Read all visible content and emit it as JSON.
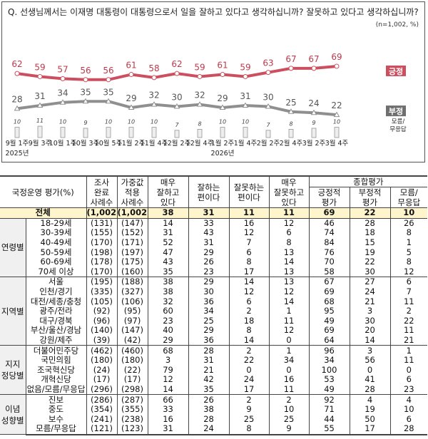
{
  "question": "Q. 선생님께서는 이재명 대통령이 대통령으로서 일을 잘하고 있다고 생각하십니까? 잘못하고 있다고 생각하십니까?",
  "sample_note": "(n=1,002, %)",
  "chart_data": {
    "type": "line",
    "categories": [
      "9월 1주",
      "9월 3주",
      "10월 1주",
      "10월 3주",
      "10월 5주",
      "11월 2주",
      "11월 4주",
      "12월 2주",
      "12월 4주",
      "1월 2주",
      "1월 4주",
      "2월 2주",
      "2월 4주",
      "3월 2주",
      "3월 4주"
    ],
    "year_labels": [
      {
        "index": 0,
        "text": "2025년"
      },
      {
        "index": 9,
        "text": "2026년"
      }
    ],
    "series": [
      {
        "name": "긍정",
        "type": "line",
        "color": "#cc4f5f",
        "values": [
          62,
          59,
          57,
          56,
          56,
          61,
          58,
          62,
          59,
          61,
          59,
          63,
          67,
          67,
          69
        ]
      },
      {
        "name": "부정",
        "type": "line",
        "color": "#8f8f8f",
        "values": [
          28,
          31,
          34,
          35,
          35,
          29,
          32,
          30,
          32,
          29,
          31,
          30,
          25,
          24,
          22
        ]
      },
      {
        "name": "모름/무응답",
        "type": "bar",
        "color": "#eeeeee",
        "values": [
          10,
          11,
          10,
          9,
          10,
          10,
          10,
          7,
          8,
          10,
          10,
          7,
          8,
          9,
          10
        ]
      }
    ]
  },
  "table": {
    "header": {
      "label": "국정운영 평가(%)",
      "cols": [
        "조사\n완료\n사례수",
        "가중값\n적용\n사례수",
        "매우\n잘하고\n있다",
        "잘하는\n편이다",
        "잘못하는\n편이다",
        "매우\n잘못하고\n있다"
      ],
      "group": "종합평가",
      "sub": [
        "긍정적\n평가",
        "부정적\n평가",
        "모름/\n무응답"
      ]
    },
    "total": {
      "label": "전체",
      "values": [
        "(1,002)",
        "(1,002)",
        "38",
        "31",
        "11",
        "11",
        "69",
        "22",
        "10"
      ]
    },
    "groups": [
      {
        "name": "연령별",
        "rows": [
          {
            "label": "18-29세",
            "values": [
              "(131)",
              "(147)",
              "14",
              "33",
              "16",
              "12",
              "46",
              "28",
              "26"
            ]
          },
          {
            "label": "30-39세",
            "values": [
              "(155)",
              "(152)",
              "31",
              "43",
              "12",
              "6",
              "74",
              "18",
              "8"
            ]
          },
          {
            "label": "40-49세",
            "values": [
              "(170)",
              "(171)",
              "52",
              "31",
              "7",
              "8",
              "84",
              "15",
              "1"
            ]
          },
          {
            "label": "50-59세",
            "values": [
              "(198)",
              "(197)",
              "47",
              "29",
              "6",
              "13",
              "76",
              "19",
              "5"
            ]
          },
          {
            "label": "60-69세",
            "values": [
              "(178)",
              "(175)",
              "43",
              "26",
              "8",
              "14",
              "70",
              "22",
              "8"
            ]
          },
          {
            "label": "70세 이상",
            "values": [
              "(170)",
              "(160)",
              "35",
              "23",
              "17",
              "13",
              "58",
              "30",
              "12"
            ]
          }
        ]
      },
      {
        "name": "지역별",
        "rows": [
          {
            "label": "서울",
            "values": [
              "(195)",
              "(188)",
              "38",
              "29",
              "14",
              "13",
              "67",
              "27",
              "6"
            ]
          },
          {
            "label": "인천/경기",
            "values": [
              "(335)",
              "(327)",
              "38",
              "30",
              "12",
              "12",
              "69",
              "24",
              "7"
            ]
          },
          {
            "label": "대전/세종/충청",
            "values": [
              "(105)",
              "(106)",
              "32",
              "36",
              "6",
              "14",
              "68",
              "21",
              "11"
            ]
          },
          {
            "label": "광주/전라",
            "values": [
              "(92)",
              "(95)",
              "60",
              "34",
              "2",
              "1",
              "95",
              "3",
              "2"
            ]
          },
          {
            "label": "대구/경북",
            "values": [
              "(96)",
              "(97)",
              "23",
              "25",
              "18",
              "11",
              "49",
              "30",
              "22"
            ]
          },
          {
            "label": "부산/울산/경남",
            "values": [
              "(140)",
              "(147)",
              "40",
              "29",
              "8",
              "12",
              "69",
              "20",
              "11"
            ]
          },
          {
            "label": "강원/제주",
            "values": [
              "(39)",
              "(42)",
              "29",
              "36",
              "14",
              "0",
              "64",
              "14",
              "21"
            ]
          }
        ]
      },
      {
        "name": "지지\n정당별",
        "rows": [
          {
            "label": "더불어민주당",
            "values": [
              "(462)",
              "(460)",
              "68",
              "28",
              "2",
              "1",
              "96",
              "3",
              "1"
            ]
          },
          {
            "label": "국민의힘",
            "values": [
              "(180)",
              "(180)",
              "3",
              "31",
              "22",
              "34",
              "34",
              "56",
              "11"
            ]
          },
          {
            "label": "조국혁신당",
            "values": [
              "(24)",
              "(22)",
              "79",
              "21",
              "0",
              "0",
              "100",
              "0",
              "0"
            ]
          },
          {
            "label": "개혁신당",
            "values": [
              "(17)",
              "(17)",
              "12",
              "42",
              "24",
              "16",
              "53",
              "41",
              "6"
            ]
          },
          {
            "label": "없음/모름/무응답",
            "values": [
              "(296)",
              "(298)",
              "14",
              "35",
              "17",
              "11",
              "49",
              "28",
              "23"
            ]
          }
        ]
      },
      {
        "name": "이념\n성향별",
        "rows": [
          {
            "label": "진보",
            "values": [
              "(286)",
              "(287)",
              "66",
              "26",
              "2",
              "2",
              "92",
              "4",
              "4"
            ]
          },
          {
            "label": "중도",
            "values": [
              "(354)",
              "(355)",
              "33",
              "38",
              "9",
              "10",
              "71",
              "19",
              "10"
            ]
          },
          {
            "label": "보수",
            "values": [
              "(241)",
              "(238)",
              "16",
              "28",
              "25",
              "25",
              "44",
              "50",
              "6"
            ]
          },
          {
            "label": "모름/무응답",
            "values": [
              "(121)",
              "(123)",
              "31",
              "24",
              "8",
              "9",
              "55",
              "17",
              "28"
            ]
          }
        ]
      }
    ]
  }
}
